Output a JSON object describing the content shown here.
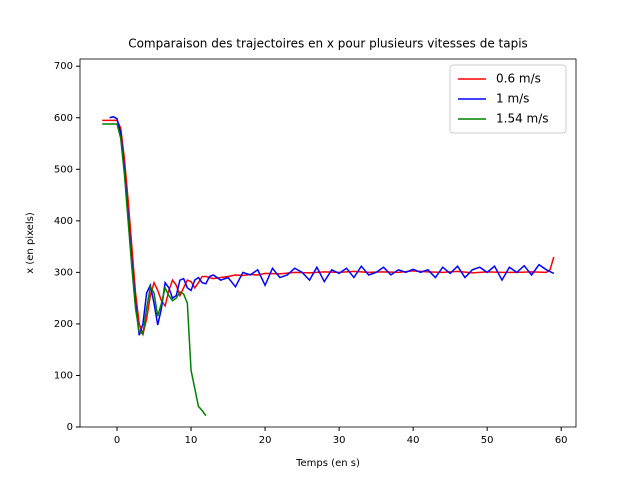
{
  "chart_data": {
    "type": "line",
    "title": "Comparaison des trajectoires en x pour plusieurs vitesses de tapis",
    "x_label": "Temps (en s)",
    "y_label": "x (en pixels)",
    "xlim": [
      -5,
      62
    ],
    "ylim": [
      0,
      714
    ],
    "xticks": [
      0,
      10,
      20,
      30,
      40,
      50,
      60
    ],
    "yticks": [
      0,
      100,
      200,
      300,
      400,
      500,
      600,
      700
    ],
    "legend": "upper right",
    "series": [
      {
        "name": "0.6 m/s",
        "color": "#ff0000",
        "x": [
          -2,
          -1,
          0,
          0.5,
          1,
          1.5,
          2,
          2.5,
          3,
          3.5,
          4,
          4.5,
          5,
          5.5,
          6,
          6.5,
          7,
          7.5,
          8,
          8.5,
          9,
          9.5,
          10,
          10.5,
          11,
          11.5,
          12,
          13,
          14,
          15,
          16,
          17,
          18,
          19,
          20,
          22,
          24,
          26,
          28,
          30,
          32,
          34,
          36,
          38,
          40,
          42,
          44,
          46,
          48,
          50,
          52,
          54,
          56,
          58,
          58.5,
          59
        ],
        "values": [
          595,
          595,
          595,
          580,
          520,
          440,
          350,
          260,
          200,
          180,
          210,
          255,
          280,
          265,
          245,
          235,
          265,
          285,
          275,
          255,
          270,
          285,
          282,
          270,
          280,
          292,
          292,
          288,
          290,
          292,
          295,
          294,
          296,
          295,
          298,
          297,
          300,
          299,
          301,
          300,
          302,
          300,
          301,
          300,
          303,
          301,
          300,
          302,
          299,
          301,
          300,
          300,
          301,
          300,
          305,
          330
        ]
      },
      {
        "name": "1 m/s",
        "color": "#0000ff",
        "x": [
          -1,
          -0.5,
          0,
          0.5,
          1,
          1.5,
          2,
          2.5,
          3,
          3.5,
          4,
          4.5,
          5,
          5.5,
          6,
          6.5,
          7,
          7.5,
          8,
          8.5,
          9,
          9.5,
          10,
          10.5,
          11,
          11.5,
          12,
          12.5,
          13,
          13.5,
          14,
          15,
          16,
          17,
          18,
          19,
          20,
          21,
          22,
          23,
          24,
          25,
          26,
          27,
          28,
          29,
          30,
          31,
          32,
          33,
          34,
          35,
          36,
          37,
          38,
          39,
          40,
          41,
          42,
          43,
          44,
          45,
          46,
          47,
          48,
          49,
          50,
          51,
          52,
          53,
          54,
          55,
          56,
          57,
          58,
          59
        ],
        "values": [
          600,
          602,
          598,
          570,
          500,
          410,
          320,
          240,
          178,
          200,
          260,
          275,
          240,
          198,
          230,
          280,
          270,
          250,
          255,
          285,
          288,
          270,
          265,
          285,
          290,
          280,
          278,
          292,
          295,
          290,
          285,
          290,
          272,
          300,
          295,
          305,
          275,
          308,
          290,
          295,
          308,
          300,
          285,
          310,
          282,
          305,
          298,
          308,
          290,
          312,
          295,
          300,
          310,
          295,
          305,
          300,
          306,
          300,
          305,
          290,
          310,
          298,
          312,
          290,
          305,
          310,
          300,
          312,
          285,
          310,
          300,
          313,
          295,
          315,
          305,
          298
        ]
      },
      {
        "name": "1.54 m/s",
        "color": "#008000",
        "x": [
          -2,
          -1,
          0,
          0.5,
          1,
          1.5,
          2,
          2.5,
          3,
          3.5,
          4,
          4.5,
          5,
          5.5,
          6,
          6.5,
          7,
          7.5,
          8,
          8.5,
          9,
          9.5,
          10,
          10.5,
          11,
          11.5,
          12
        ],
        "values": [
          588,
          588,
          588,
          560,
          490,
          400,
          310,
          230,
          185,
          180,
          230,
          272,
          260,
          215,
          240,
          270,
          255,
          245,
          250,
          262,
          258,
          240,
          110,
          75,
          40,
          32,
          22
        ]
      }
    ]
  }
}
